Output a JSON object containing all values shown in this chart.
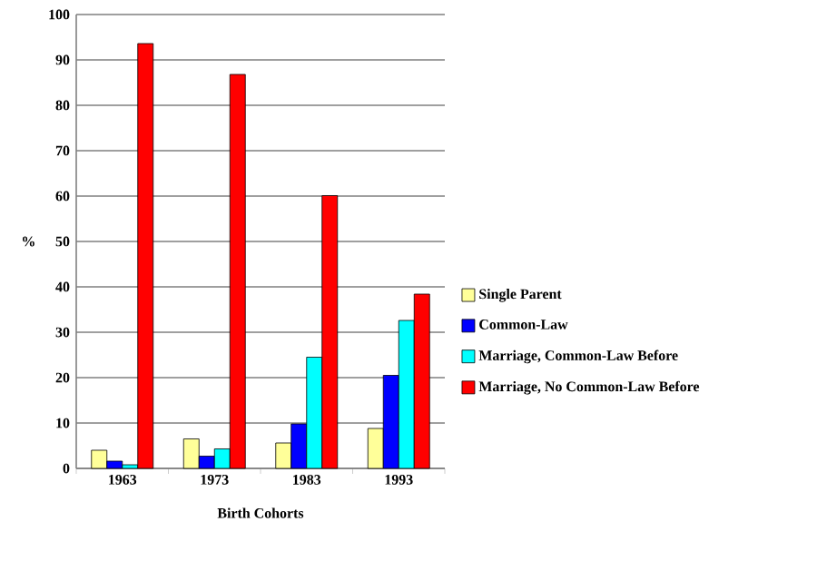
{
  "chart_data": {
    "type": "bar",
    "xlabel": "Birth Cohorts",
    "ylabel": "%",
    "categories": [
      "1963",
      "1973",
      "1983",
      "1993"
    ],
    "series": [
      {
        "name": "Single Parent",
        "color": "#ffff99",
        "values": [
          4.0,
          6.5,
          5.6,
          8.8
        ]
      },
      {
        "name": "Common-Law",
        "color": "#0000ff",
        "values": [
          1.6,
          2.7,
          9.8,
          20.5
        ]
      },
      {
        "name": "Marriage, Common-Law Before",
        "color": "#00ffff",
        "values": [
          0.8,
          4.3,
          24.5,
          32.6
        ]
      },
      {
        "name": "Marriage, No Common-Law Before",
        "color": "#ff0000",
        "values": [
          93.6,
          86.8,
          60.1,
          38.4
        ]
      }
    ],
    "ylim": [
      0,
      100
    ],
    "yticks": [
      0,
      10,
      20,
      30,
      40,
      50,
      60,
      70,
      80,
      90,
      100
    ],
    "grid": "y",
    "legend": "right"
  }
}
